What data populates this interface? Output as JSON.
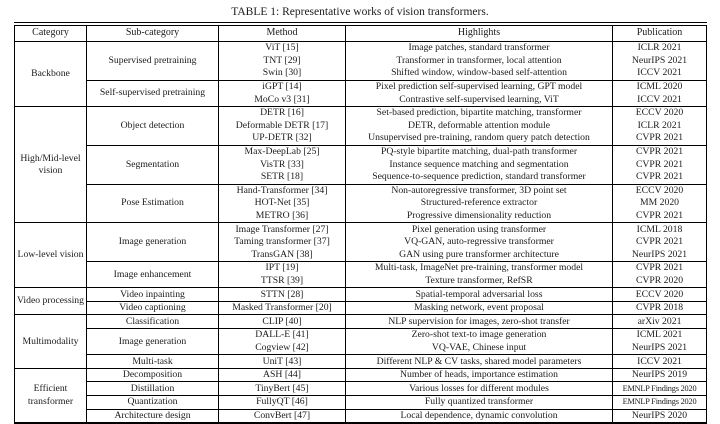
{
  "title": "TABLE 1: Representative works of vision transformers.",
  "table": {
    "headers": [
      "Category",
      "Sub-category",
      "Method",
      "Highlights",
      "Publication"
    ],
    "groups": [
      {
        "category": "Backbone",
        "subgroups": [
          {
            "subcategory": "Supervised pretraining",
            "rows": [
              {
                "method": "ViT [15]",
                "highlights": "Image patches, standard transformer",
                "publication": "ICLR 2021"
              },
              {
                "method": "TNT [29]",
                "highlights": "Transformer in transformer, local attention",
                "publication": "NeurIPS 2021"
              },
              {
                "method": "Swin [30]",
                "highlights": "Shifted window, window-based self-attention",
                "publication": "ICCV 2021"
              }
            ]
          },
          {
            "subcategory": "Self-supervised pretraining",
            "rows": [
              {
                "method": "iGPT [14]",
                "highlights": "Pixel prediction self-supervised learning, GPT model",
                "publication": "ICML 2020"
              },
              {
                "method": "MoCo v3 [31]",
                "highlights": "Contrastive self-supervised learning, ViT",
                "publication": "ICCV 2021"
              }
            ]
          }
        ]
      },
      {
        "category": "High/Mid-level vision",
        "subgroups": [
          {
            "subcategory": "Object detection",
            "rows": [
              {
                "method": "DETR [16]",
                "highlights": "Set-based prediction, bipartite matching, transformer",
                "publication": "ECCV 2020"
              },
              {
                "method": "Deformable DETR [17]",
                "highlights": "DETR, deformable attention module",
                "publication": "ICLR 2021"
              },
              {
                "method": "UP-DETR [32]",
                "highlights": "Unsupervised pre-training, random query patch detection",
                "publication": "CVPR 2021"
              }
            ]
          },
          {
            "subcategory": "Segmentation",
            "rows": [
              {
                "method": "Max-DeepLab [25]",
                "highlights": "PQ-style bipartite matching, dual-path transformer",
                "publication": "CVPR 2021"
              },
              {
                "method": "VisTR [33]",
                "highlights": "Instance sequence matching and segmentation",
                "publication": "CVPR 2021"
              },
              {
                "method": "SETR [18]",
                "highlights": "Sequence-to-sequence prediction, standard transformer",
                "publication": "CVPR 2021"
              }
            ]
          },
          {
            "subcategory": "Pose Estimation",
            "rows": [
              {
                "method": "Hand-Transformer [34]",
                "highlights": "Non-autoregressive transformer, 3D point set",
                "publication": "ECCV 2020"
              },
              {
                "method": "HOT-Net [35]",
                "highlights": "Structured-reference extractor",
                "publication": "MM 2020"
              },
              {
                "method": "METRO [36]",
                "highlights": "Progressive dimensionality reduction",
                "publication": "CVPR 2021"
              }
            ]
          }
        ]
      },
      {
        "category": "Low-level vision",
        "subgroups": [
          {
            "subcategory": "Image generation",
            "rows": [
              {
                "method": "Image Transformer [27]",
                "highlights": "Pixel generation using transformer",
                "publication": "ICML 2018"
              },
              {
                "method": "Taming transformer [37]",
                "highlights": "VQ-GAN, auto-regressive transformer",
                "publication": "CVPR 2021"
              },
              {
                "method": "TransGAN [38]",
                "highlights": "GAN using pure transformer architecture",
                "publication": "NeurIPS 2021"
              }
            ]
          },
          {
            "subcategory": "Image enhancement",
            "rows": [
              {
                "method": "IPT [19]",
                "highlights": "Multi-task, ImageNet pre-training, transformer model",
                "publication": "CVPR 2021"
              },
              {
                "method": "TTSR [39]",
                "highlights": "Texture transformer, RefSR",
                "publication": "CVPR 2020"
              }
            ]
          }
        ]
      },
      {
        "category": "Video processing",
        "subgroups": [
          {
            "subcategory": "Video inpainting",
            "rows": [
              {
                "method": "STTN [28]",
                "highlights": "Spatial-temporal adversarial loss",
                "publication": "ECCV 2020"
              }
            ]
          },
          {
            "subcategory": "Video captioning",
            "rows": [
              {
                "method": "Masked Transformer [20]",
                "highlights": "Masking network, event proposal",
                "publication": "CVPR 2018"
              }
            ]
          }
        ]
      },
      {
        "category": "Multimodality",
        "subgroups": [
          {
            "subcategory": "Classification",
            "rows": [
              {
                "method": "CLIP [40]",
                "highlights": "NLP supervision for images, zero-shot transfer",
                "publication": "arXiv 2021"
              }
            ]
          },
          {
            "subcategory": "Image generation",
            "rows": [
              {
                "method": "DALL-E [41]",
                "highlights": "Zero-shot text-to image generation",
                "publication": "ICML 2021"
              },
              {
                "method": "Cogview [42]",
                "highlights": "VQ-VAE, Chinese input",
                "publication": "NeurIPS 2021"
              }
            ]
          },
          {
            "subcategory": "Multi-task",
            "rows": [
              {
                "method": "UniT [43]",
                "highlights": "Different NLP & CV tasks, shared model parameters",
                "publication": "ICCV 2021"
              }
            ]
          }
        ]
      },
      {
        "category": "Efficient transformer",
        "subgroups": [
          {
            "subcategory": "Decomposition",
            "rows": [
              {
                "method": "ASH [44]",
                "highlights": "Number of heads, importance estimation",
                "publication": "NeurIPS 2019"
              }
            ]
          },
          {
            "subcategory": "Distillation",
            "rows": [
              {
                "method": "TinyBert [45]",
                "highlights": "Various losses for different modules",
                "publication": "EMNLP Findings 2020"
              }
            ]
          },
          {
            "subcategory": "Quantization",
            "rows": [
              {
                "method": "FullyQT [46]",
                "highlights": "Fully quantized transformer",
                "publication": "EMNLP Findings 2020"
              }
            ]
          },
          {
            "subcategory": "Architecture design",
            "rows": [
              {
                "method": "ConvBert [47]",
                "highlights": "Local dependence, dynamic convolution",
                "publication": "NeurIPS 2020"
              }
            ]
          }
        ]
      }
    ]
  }
}
